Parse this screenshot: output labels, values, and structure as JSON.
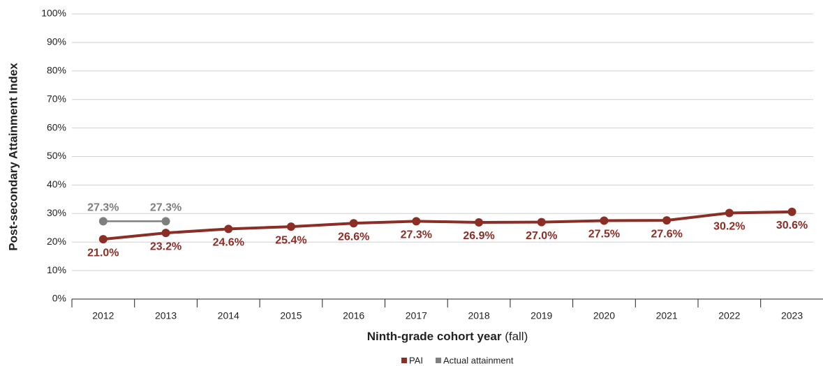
{
  "chart_data": {
    "type": "line",
    "ylabel": "Post-secondary Attainment Index",
    "xlabel": {
      "bold": "Ninth-grade cohort year",
      "normal": "(fall)"
    },
    "categories": [
      "2012",
      "2013",
      "2014",
      "2015",
      "2016",
      "2017",
      "2018",
      "2019",
      "2020",
      "2021",
      "2022",
      "2023"
    ],
    "series": [
      {
        "name": "PAI",
        "color": "#8b2e25",
        "label_position": "below",
        "values": [
          21.0,
          23.2,
          24.6,
          25.4,
          26.6,
          27.3,
          26.9,
          27.0,
          27.5,
          27.6,
          30.2,
          30.6
        ],
        "value_labels": [
          "21.0%",
          "23.2%",
          "24.6%",
          "25.4%",
          "26.6%",
          "27.3%",
          "26.9%",
          "27.0%",
          "27.5%",
          "27.6%",
          "30.2%",
          "30.6%"
        ]
      },
      {
        "name": "Actual attainment",
        "color": "#7f7f7f",
        "label_position": "above",
        "values": [
          27.3,
          27.3,
          null,
          null,
          null,
          null,
          null,
          null,
          null,
          null,
          null,
          null
        ],
        "value_labels": [
          "27.3%",
          "27.3%",
          null,
          null,
          null,
          null,
          null,
          null,
          null,
          null,
          null,
          null
        ]
      }
    ],
    "ylim": [
      0,
      100
    ],
    "yticks": [
      {
        "value": 0,
        "label": "0%"
      },
      {
        "value": 10,
        "label": "10%"
      },
      {
        "value": 20,
        "label": "20%"
      },
      {
        "value": 30,
        "label": "30%"
      },
      {
        "value": 40,
        "label": "40%"
      },
      {
        "value": 50,
        "label": "50%"
      },
      {
        "value": 60,
        "label": "60%"
      },
      {
        "value": 70,
        "label": "70%"
      },
      {
        "value": 80,
        "label": "80%"
      },
      {
        "value": 90,
        "label": "90%"
      },
      {
        "value": 100,
        "label": "100%"
      }
    ],
    "grid": true,
    "legend": "bottom"
  }
}
